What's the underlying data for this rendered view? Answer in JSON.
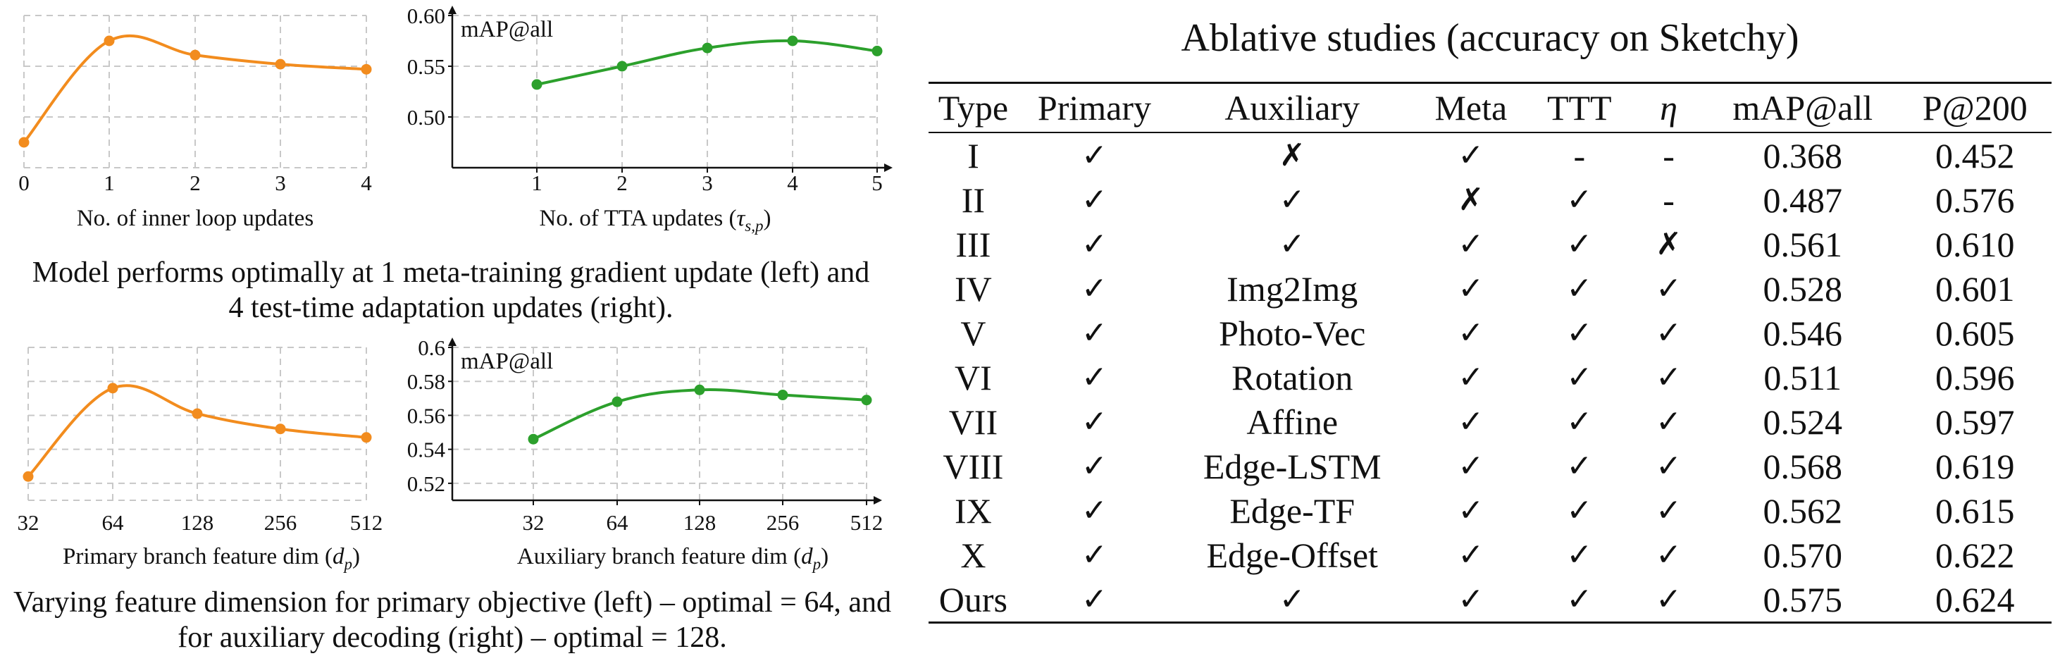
{
  "chart_data": [
    {
      "type": "line",
      "x": [
        0,
        1,
        2,
        3,
        4
      ],
      "series": [
        {
          "values": [
            0.475,
            0.575,
            0.561,
            0.552,
            0.547
          ],
          "color": "#f28c1e"
        }
      ],
      "xlabel": "No. of inner loop updates",
      "ylabel": "",
      "ylim": [
        0.45,
        0.6
      ],
      "yticks": [],
      "xticks": [
        "0",
        "1",
        "2",
        "3",
        "4"
      ],
      "grid": true
    },
    {
      "type": "line",
      "x": [
        1,
        2,
        3,
        4,
        5
      ],
      "series": [
        {
          "values": [
            0.532,
            0.55,
            0.568,
            0.575,
            0.565
          ],
          "color": "#2ca02c"
        }
      ],
      "xlabel": "No. of TTA updates (",
      "xlabel_tau": "τ",
      "xlabel_sub": "s,p",
      "xlabel_close": ")",
      "ylabel": "mAP@all",
      "ylim": [
        0.45,
        0.6
      ],
      "yticks": [
        "0.50",
        "0.55",
        "0.60"
      ],
      "yticks_vals": [
        0.5,
        0.55,
        0.6
      ],
      "xticks": [
        "1",
        "2",
        "3",
        "4",
        "5"
      ],
      "grid": true
    },
    {
      "type": "line",
      "categories": [
        "32",
        "64",
        "128",
        "256",
        "512"
      ],
      "series": [
        {
          "values": [
            0.524,
            0.576,
            0.561,
            0.552,
            0.547
          ],
          "color": "#f28c1e"
        }
      ],
      "xlabel": "Primary branch feature dim (",
      "xlabel_sym": "d",
      "xlabel_sub": "p",
      "xlabel_close": ")",
      "ylabel": "",
      "ylim": [
        0.51,
        0.6
      ],
      "yticks": [],
      "grid": true
    },
    {
      "type": "line",
      "categories": [
        "32",
        "64",
        "128",
        "256",
        "512"
      ],
      "series": [
        {
          "values": [
            0.546,
            0.568,
            0.575,
            0.572,
            0.569
          ],
          "color": "#2ca02c"
        }
      ],
      "xlabel": "Auxiliary branch feature dim (",
      "xlabel_sym": "d",
      "xlabel_sub": "p",
      "xlabel_close": ")",
      "ylabel": "mAP@all",
      "ylim": [
        0.51,
        0.6
      ],
      "yticks": [
        "0.52",
        "0.54",
        "0.56",
        "0.58",
        "0.6"
      ],
      "yticks_vals": [
        0.52,
        0.54,
        0.56,
        0.58,
        0.6
      ],
      "grid": true
    },
    {
      "type": "table",
      "title": "Ablative studies (accuracy on Sketchy)",
      "columns": [
        "Type",
        "Primary",
        "Auxiliary",
        "Meta",
        "TTT",
        "η",
        "mAP@all",
        "P@200"
      ],
      "rows": [
        [
          "I",
          "✓",
          "✗",
          "✓",
          "-",
          "-",
          "0.368",
          "0.452"
        ],
        [
          "II",
          "✓",
          "✓",
          "✗",
          "✓",
          "-",
          "0.487",
          "0.576"
        ],
        [
          "III",
          "✓",
          "✓",
          "✓",
          "✓",
          "✗",
          "0.561",
          "0.610"
        ],
        [
          "IV",
          "✓",
          "Img2Img",
          "✓",
          "✓",
          "✓",
          "0.528",
          "0.601"
        ],
        [
          "V",
          "✓",
          "Photo-Vec",
          "✓",
          "✓",
          "✓",
          "0.546",
          "0.605"
        ],
        [
          "VI",
          "✓",
          "Rotation",
          "✓",
          "✓",
          "✓",
          "0.511",
          "0.596"
        ],
        [
          "VII",
          "✓",
          "Affine",
          "✓",
          "✓",
          "✓",
          "0.524",
          "0.597"
        ],
        [
          "VIII",
          "✓",
          "Edge-LSTM",
          "✓",
          "✓",
          "✓",
          "0.568",
          "0.619"
        ],
        [
          "IX",
          "✓",
          "Edge-TF",
          "✓",
          "✓",
          "✓",
          "0.562",
          "0.615"
        ],
        [
          "X",
          "✓",
          "Edge-Offset",
          "✓",
          "✓",
          "✓",
          "0.570",
          "0.622"
        ],
        [
          "Ours",
          "✓",
          "✓",
          "✓",
          "✓",
          "✓",
          "0.575",
          "0.624"
        ]
      ]
    }
  ],
  "captions": {
    "top": "Model performs optimally at 1 meta-training gradient update (left) and 4 test-time adaptation updates (right).",
    "bottom": "Varying feature dimension for primary objective (left) – optimal = 64, and for auxiliary decoding (right) – optimal = 128."
  }
}
